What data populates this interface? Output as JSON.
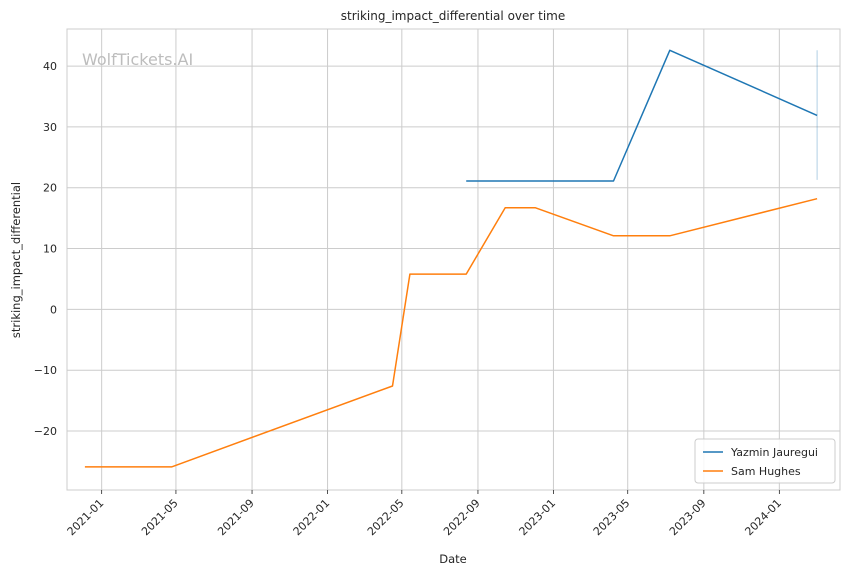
{
  "chart_data": {
    "type": "line",
    "title": "striking_impact_differential over time",
    "xlabel": "Date",
    "ylabel": "striking_impact_differential",
    "watermark": "WolfTickets.AI",
    "grid": true,
    "legend_position": "bottom-right",
    "x_ticks": [
      "2021-01",
      "2021-05",
      "2021-09",
      "2022-01",
      "2022-05",
      "2022-09",
      "2023-01",
      "2023-05",
      "2023-09",
      "2024-01"
    ],
    "y_ticks": [
      -20,
      -10,
      0,
      10,
      20,
      30,
      40
    ],
    "y_tick_labels": [
      "−20",
      "−10",
      "0",
      "10",
      "20",
      "30",
      "40"
    ],
    "xlim": [
      "2020-11-06",
      "2024-04-08"
    ],
    "ylim": [
      -29.7,
      46.1
    ],
    "series": [
      {
        "name": "Yazmin Jauregui",
        "color": "#1f77b4",
        "points": [
          [
            "2022-08-13",
            21.1
          ],
          [
            "2023-04-08",
            21.1
          ],
          [
            "2023-07-08",
            42.6
          ],
          [
            "2024-03-02",
            31.9
          ]
        ],
        "error_bar": {
          "x": "2024-03-02",
          "low": 21.3,
          "high": 42.6
        }
      },
      {
        "name": "Sam Hughes",
        "color": "#ff7f0e",
        "points": [
          [
            "2020-12-05",
            -25.9
          ],
          [
            "2021-04-24",
            -25.9
          ],
          [
            "2022-04-16",
            -12.6
          ],
          [
            "2022-05-14",
            5.8
          ],
          [
            "2022-08-13",
            5.8
          ],
          [
            "2022-10-15",
            16.7
          ],
          [
            "2022-12-03",
            16.7
          ],
          [
            "2023-04-08",
            12.1
          ],
          [
            "2023-07-08",
            12.1
          ],
          [
            "2024-03-02",
            18.2
          ]
        ]
      }
    ]
  }
}
